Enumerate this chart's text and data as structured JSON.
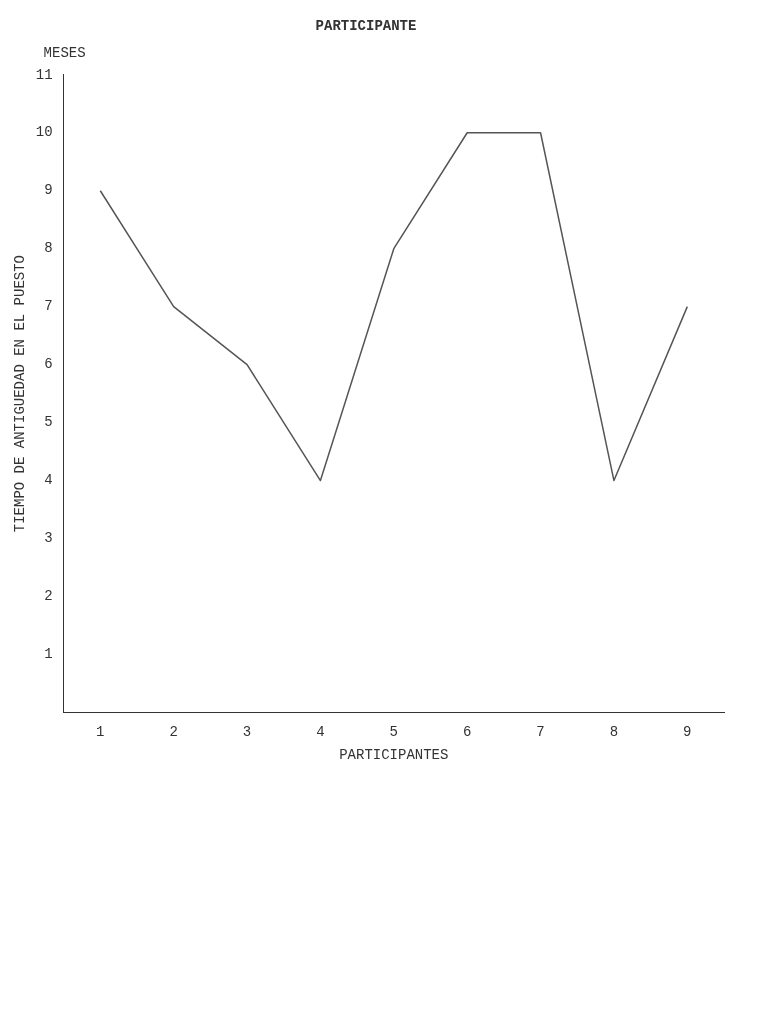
{
  "chart_data": {
    "type": "line",
    "title": "PARTICIPANTE",
    "xlabel": "PARTICIPANTES",
    "ylabel": "TIEMPO DE ANTIGUEDAD EN EL PUESTO",
    "annotations": [
      "MESES"
    ],
    "categories": [
      "1",
      "2",
      "3",
      "4",
      "5",
      "6",
      "7",
      "8",
      "9"
    ],
    "series": [
      {
        "color": "#555555",
        "values": [
          9,
          7,
          6,
          4,
          8,
          10,
          10,
          4,
          7
        ]
      }
    ],
    "ylim": [
      0,
      11
    ],
    "yticks": [
      1,
      2,
      3,
      4,
      5,
      6,
      7,
      8,
      9,
      10,
      11
    ],
    "grid": false,
    "legend": false,
    "marker": "none",
    "line_style": "solid"
  }
}
